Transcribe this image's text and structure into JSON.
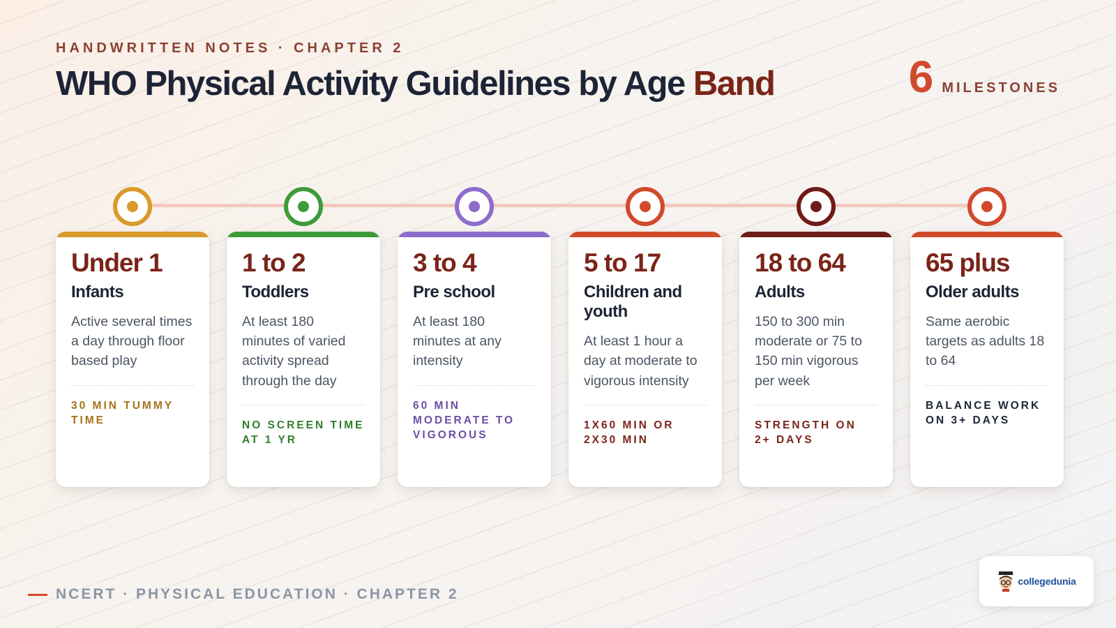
{
  "header": {
    "eyebrow": "HANDWRITTEN NOTES · CHAPTER 2",
    "title_main": "WHO Physical Activity Guidelines by Age",
    "title_accent": "Band",
    "milestone_count": "6",
    "milestone_label": "MILESTONES"
  },
  "milestones": [
    {
      "age": "Under 1",
      "group": "Infants",
      "desc": "Active several times a day through floor based play",
      "note": "30 min tummy time",
      "color": "#d89a2a",
      "note_color": "#a47318"
    },
    {
      "age": "1 to 2",
      "group": "Toddlers",
      "desc": "At least 180 minutes of varied activity spread through the day",
      "note": "No screen time at 1 yr",
      "color": "#3f9a3a",
      "note_color": "#2f7d2c"
    },
    {
      "age": "3 to 4",
      "group": "Pre school",
      "desc": "At least 180 minutes at any intensity",
      "note": "60 min moderate to vigorous",
      "color": "#8e6ccc",
      "note_color": "#6a4fa6"
    },
    {
      "age": "5 to 17",
      "group": "Children and youth",
      "desc": "At least 1 hour a day at moderate to vigorous intensity",
      "note": "1x60 min or 2x30 min",
      "color": "#d24a2c",
      "note_color": "#7a2418"
    },
    {
      "age": "18 to 64",
      "group": "Adults",
      "desc": "150 to 300 min moderate or 75 to 150 min vigorous per week",
      "note": "Strength on 2+ days",
      "color": "#6e1c18",
      "note_color": "#7a2418"
    },
    {
      "age": "65 plus",
      "group": "Older adults",
      "desc": "Same aerobic targets as adults 18 to 64",
      "note": "Balance work on 3+ days",
      "color": "#d24a2c",
      "note_color": "#1d2436"
    }
  ],
  "footer": {
    "text": "NCERT · PHYSICAL EDUCATION · CHAPTER 2"
  },
  "logo": {
    "brand": "collegedunia"
  }
}
